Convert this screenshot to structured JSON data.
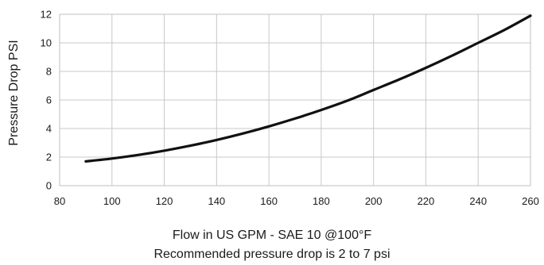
{
  "chart_data": {
    "type": "line",
    "title": "",
    "xlabel": "Flow in US GPM - SAE 10 @100°F",
    "subtitle": "Recommended pressure drop is 2 to 7 psi",
    "ylabel": "Pressure Drop PSI",
    "xlim": [
      80,
      260
    ],
    "ylim": [
      0,
      12
    ],
    "x_ticks": [
      80,
      100,
      120,
      140,
      160,
      180,
      200,
      220,
      240,
      260
    ],
    "y_ticks": [
      0,
      2,
      4,
      6,
      8,
      10,
      12
    ],
    "x_tick_labels": [
      "80",
      "100",
      "120",
      "140",
      "160",
      "180",
      "200",
      "220",
      "240",
      "260"
    ],
    "y_tick_labels": [
      "0",
      "2",
      "4",
      "6",
      "8",
      "10",
      "12"
    ],
    "grid": true,
    "series": [
      {
        "color": "#111111",
        "x": [
          90,
          100,
          110,
          120,
          130,
          140,
          150,
          160,
          170,
          180,
          190,
          200,
          210,
          220,
          230,
          240,
          250,
          260
        ],
        "y": [
          1.7,
          1.9,
          2.15,
          2.45,
          2.8,
          3.2,
          3.65,
          4.15,
          4.7,
          5.3,
          5.95,
          6.7,
          7.45,
          8.25,
          9.1,
          10.0,
          10.9,
          11.9
        ]
      }
    ]
  }
}
